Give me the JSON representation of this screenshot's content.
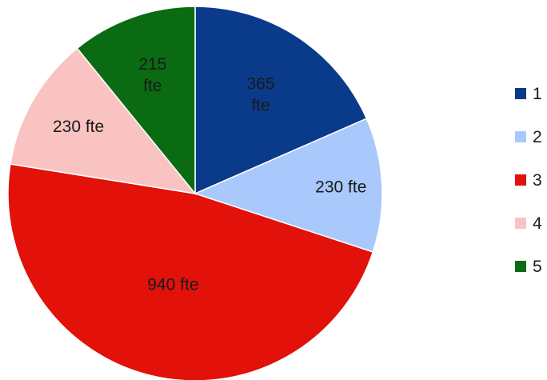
{
  "chart_data": {
    "type": "pie",
    "categories": [
      "1",
      "2",
      "3",
      "4",
      "5"
    ],
    "values": [
      365,
      230,
      940,
      230,
      215
    ],
    "labels": [
      "365 fte",
      "230 fte",
      "940 fte",
      "230 fte",
      "215 fte"
    ],
    "colors": [
      "#0a3a8a",
      "#a9c8fb",
      "#e21109",
      "#f9c3c1",
      "#0a6b12"
    ],
    "legend": {
      "placement": "right",
      "entries": [
        "1",
        "2",
        "3",
        "4",
        "5"
      ]
    },
    "start_angle_deg": 0,
    "direction": "clockwise",
    "title": "",
    "subtitle": ""
  }
}
